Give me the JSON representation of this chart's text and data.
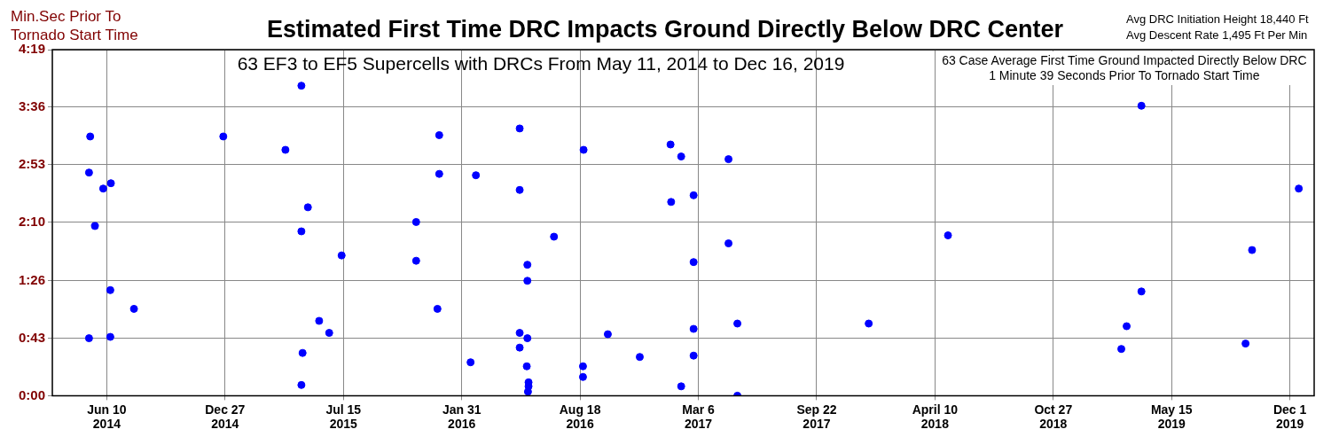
{
  "chart_data": {
    "type": "scatter",
    "title": "Estimated First Time DRC Impacts Ground Directly Below DRC Center",
    "subtitle": "63 EF3 to EF5 Supercells with DRCs From May 11, 2014 to Dec 16, 2019",
    "ylabel": "Min.Sec Prior To Tornado Start Time",
    "annotations": [
      "Avg DRC Initiation Height 18,440 Ft\nAvg Descent Rate 1,495 Ft Per Min",
      "63 Case Average First Time Ground Impacted Directly Below DRC\n1 Minute 39 Seconds Prior To Tornado Start Time"
    ],
    "series": [
      {
        "color": "#0000ff",
        "x": [
          "2014-05-13",
          "2014-05-11",
          "2014-05-11",
          "2014-05-21",
          "2014-06-04",
          "2014-06-17",
          "2014-06-16",
          "2014-06-16",
          "2014-07-26",
          "2014-12-24",
          "2015-04-08",
          "2015-05-05",
          "2015-05-05",
          "2015-05-16",
          "2015-05-05",
          "2015-05-07",
          "2015-06-04",
          "2015-06-21",
          "2015-07-12",
          "2015-11-15",
          "2015-11-15",
          "2015-12-24",
          "2015-12-24",
          "2015-12-21",
          "2016-02-15",
          "2016-02-24",
          "2016-05-08",
          "2016-05-08",
          "2016-05-08",
          "2016-05-08",
          "2016-05-21",
          "2016-05-21",
          "2016-05-21",
          "2016-05-20",
          "2016-05-23",
          "2016-05-23",
          "2016-05-22",
          "2016-07-05",
          "2016-08-24",
          "2016-08-23",
          "2016-08-23",
          "2016-10-04",
          "2016-11-27",
          "2017-01-18",
          "2017-01-19",
          "2017-02-05",
          "2017-02-05",
          "2017-02-26",
          "2017-02-26",
          "2017-02-26",
          "2017-02-26",
          "2017-04-26",
          "2017-04-26",
          "2017-05-11",
          "2017-05-11",
          "2017-12-19",
          "2018-05-02",
          "2019-02-19",
          "2019-02-28",
          "2019-03-25",
          "2019-03-25",
          "2019-09-17",
          "2019-09-28",
          "2019-12-16"
        ],
        "values": [
          194,
          167,
          43,
          127,
          155,
          159,
          79,
          44,
          65,
          194,
          184,
          232,
          123,
          141,
          8,
          32,
          56,
          47,
          105,
          130,
          101,
          195,
          166,
          65,
          25,
          165,
          200,
          154,
          47,
          36,
          98,
          86,
          43,
          22,
          10,
          7,
          3,
          119,
          184,
          22,
          14,
          46,
          29,
          188,
          145,
          179,
          7,
          150,
          100,
          50,
          30,
          177,
          114,
          54,
          0,
          54,
          120,
          35,
          52,
          217,
          78,
          39,
          109,
          155
        ]
      }
    ],
    "xlim": [
      "2014-03-10",
      "2020-01-11"
    ],
    "xticks": [
      {
        "value": "2014-06-10",
        "label": "Jun 10\n2014"
      },
      {
        "value": "2014-12-27",
        "label": "Dec 27\n2014"
      },
      {
        "value": "2015-07-15",
        "label": "Jul 15\n2015"
      },
      {
        "value": "2016-01-31",
        "label": "Jan 31\n2016"
      },
      {
        "value": "2016-08-18",
        "label": "Aug 18\n2016"
      },
      {
        "value": "2017-03-06",
        "label": "Mar 6\n2017"
      },
      {
        "value": "2017-09-22",
        "label": "Sep 22\n2017"
      },
      {
        "value": "2018-04-10",
        "label": "April 10\n2018"
      },
      {
        "value": "2018-10-27",
        "label": "Oct 27\n2018"
      },
      {
        "value": "2019-05-15",
        "label": "May 15\n2019"
      },
      {
        "value": "2019-12-01",
        "label": "Dec 1\n2019"
      }
    ],
    "ylim": [
      0,
      259
    ],
    "yticks": [
      {
        "value": 0,
        "label": "0:00"
      },
      {
        "value": 43,
        "label": "0:43"
      },
      {
        "value": 86,
        "label": "1:26"
      },
      {
        "value": 130,
        "label": "2:10"
      },
      {
        "value": 173,
        "label": "2:53"
      },
      {
        "value": 216,
        "label": "3:36"
      },
      {
        "value": 259,
        "label": "4:19"
      }
    ],
    "grid": true,
    "legend": false,
    "marker": "circle"
  }
}
